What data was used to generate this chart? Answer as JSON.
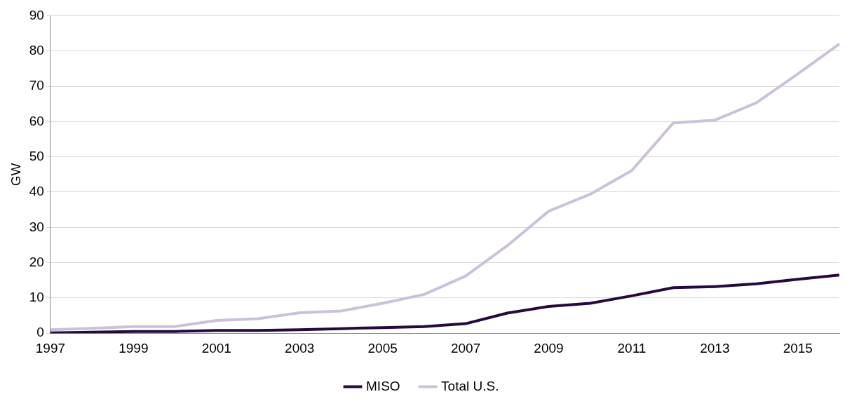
{
  "chart_data": {
    "type": "line",
    "ylabel": "GW",
    "categories": [
      "1997",
      null,
      "1999",
      null,
      "2001",
      null,
      "2003",
      null,
      "2005",
      null,
      "2007",
      null,
      "2009",
      null,
      "2011",
      null,
      "2013",
      null,
      "2015",
      null
    ],
    "series": [
      {
        "name": "MISO",
        "color": "#26093f",
        "values": [
          0.1,
          0.3,
          0.5,
          0.5,
          0.8,
          0.8,
          1.0,
          1.3,
          1.6,
          1.9,
          2.7,
          5.7,
          7.6,
          8.5,
          10.6,
          12.9,
          13.2,
          14.0,
          15.3,
          16.5
        ]
      },
      {
        "name": "Total U.S.",
        "color": "#ccc1da",
        "values": [
          1.0,
          1.4,
          1.9,
          1.9,
          3.6,
          4.1,
          5.8,
          6.3,
          8.5,
          11.0,
          16.2,
          24.8,
          34.6,
          39.4,
          46.1,
          59.6,
          60.4,
          65.3,
          73.5,
          82.0
        ]
      }
    ],
    "ylim": [
      0,
      90
    ],
    "yticks": [
      0,
      10,
      20,
      30,
      40,
      50,
      60,
      70,
      80,
      90
    ],
    "grid": "y",
    "legend": "bottom",
    "marker": "none",
    "line_style": "solid"
  }
}
